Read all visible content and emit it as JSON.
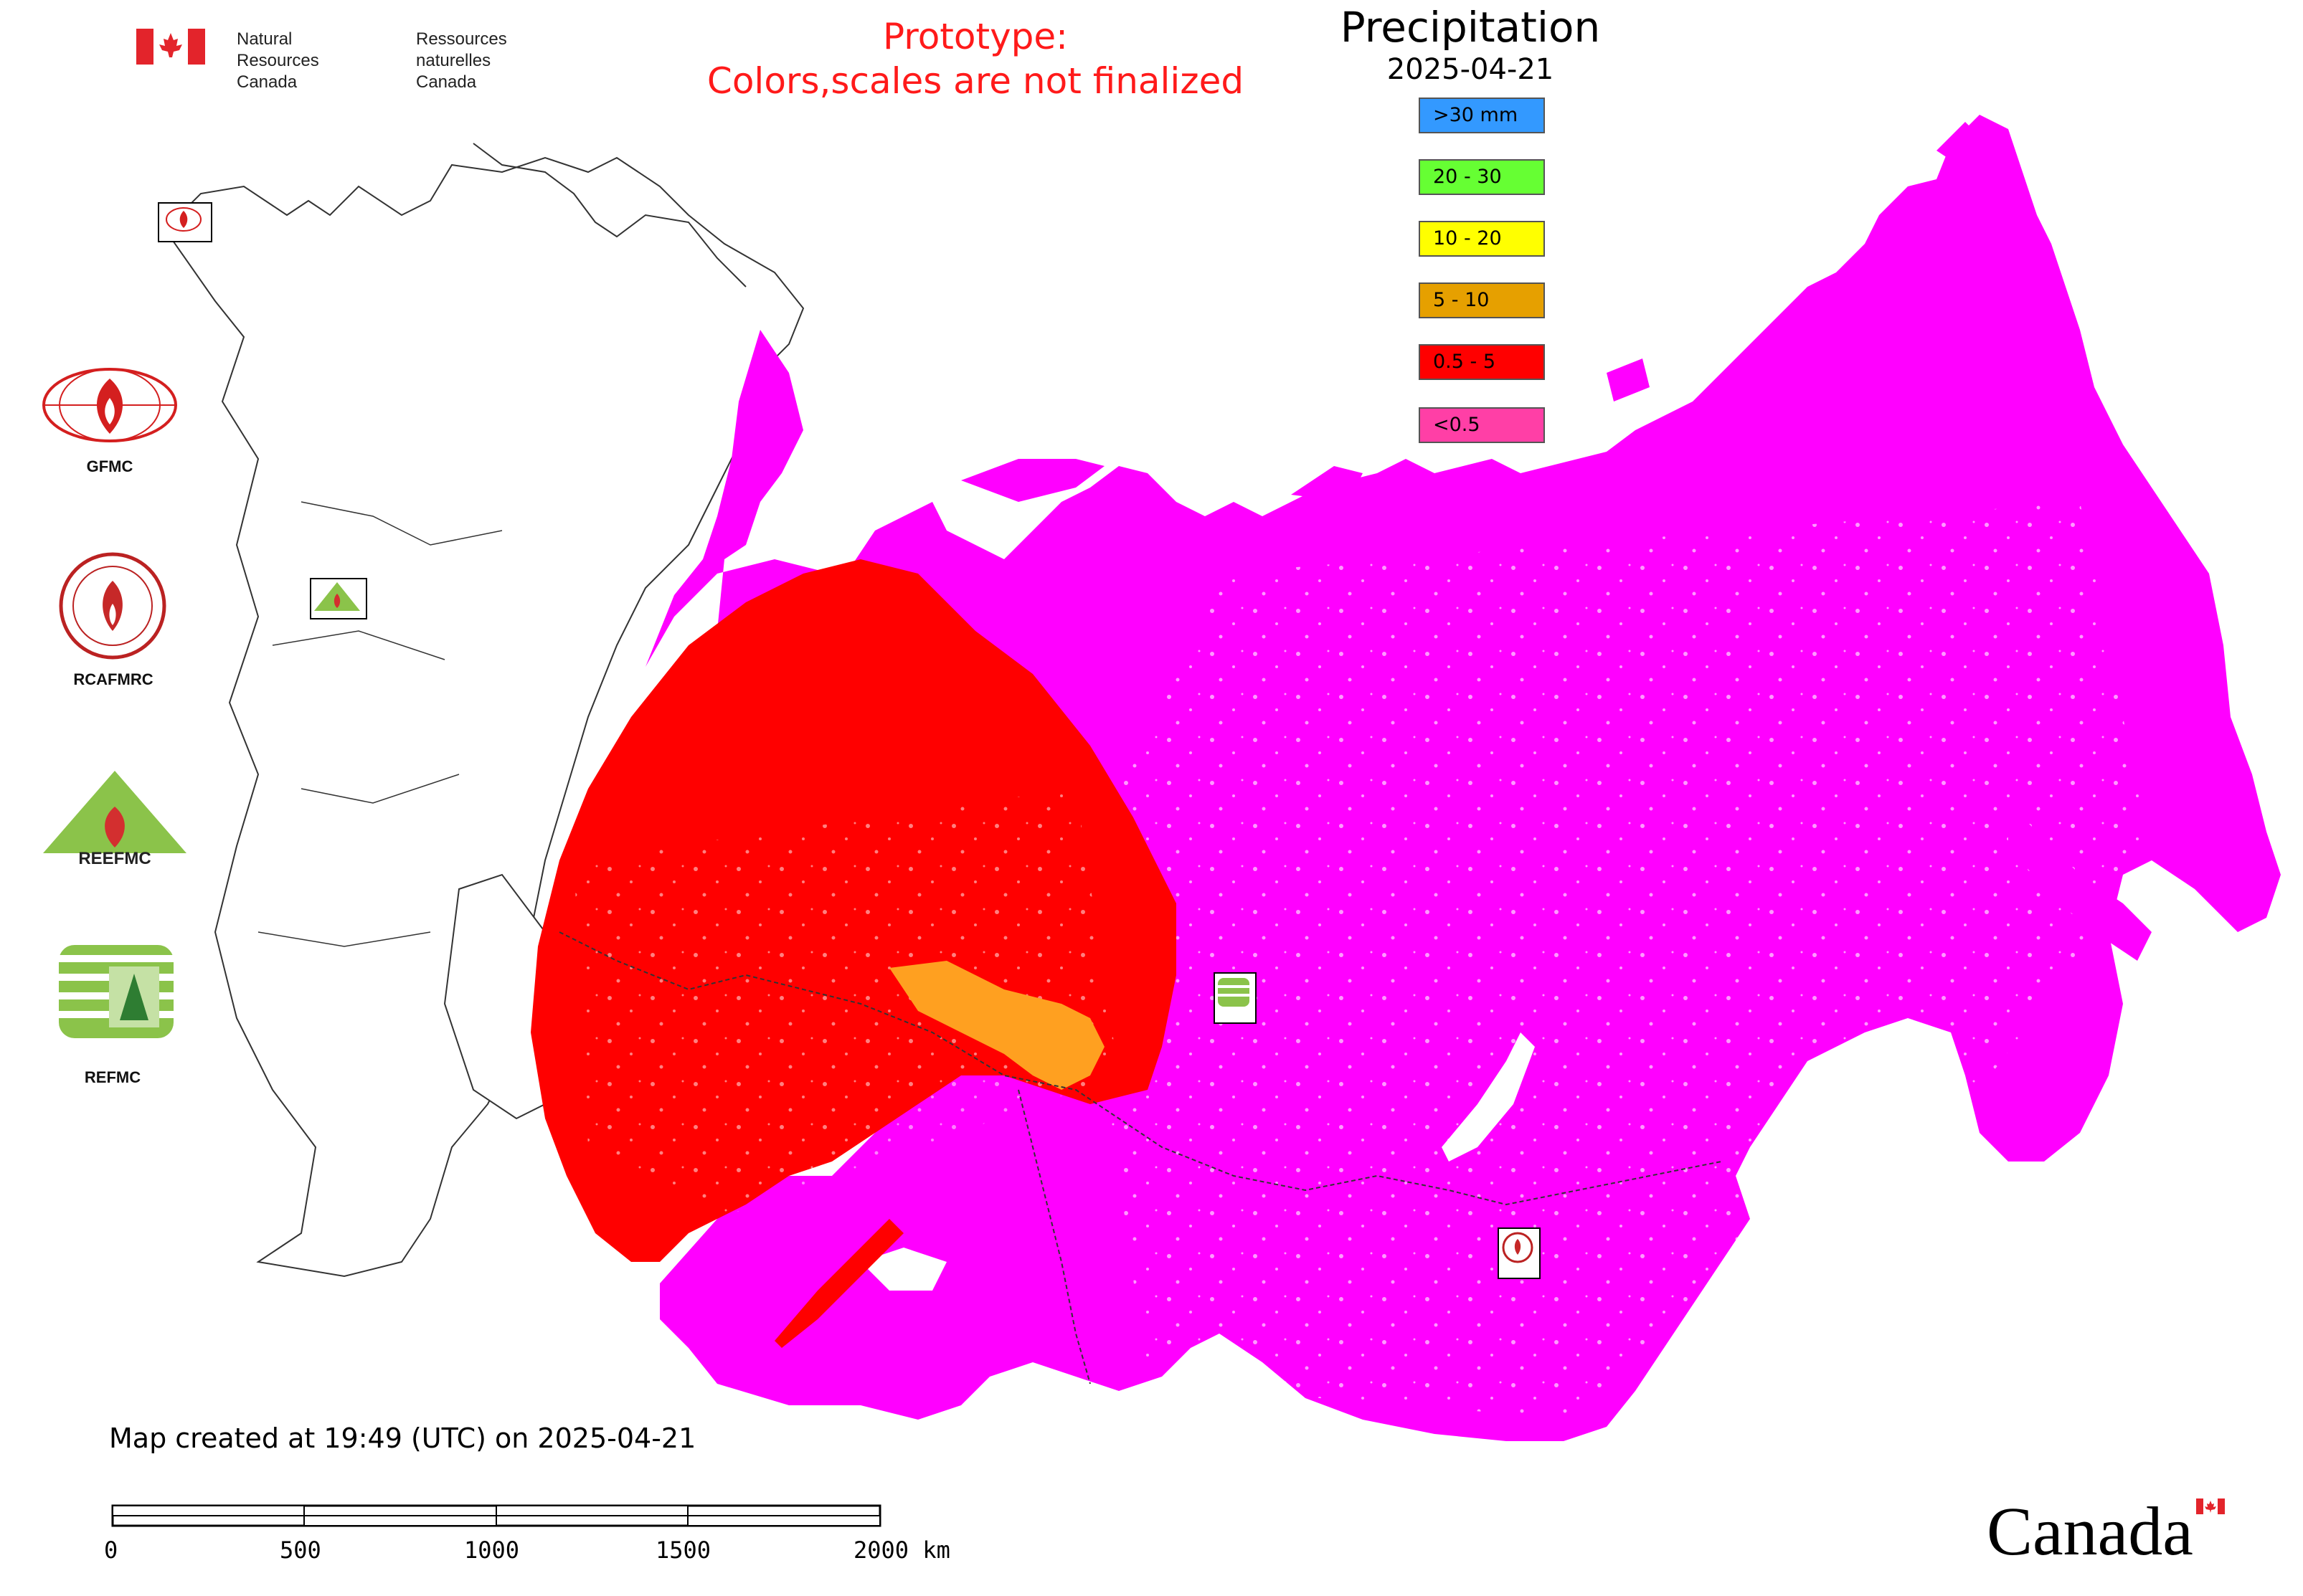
{
  "header": {
    "nrcan_en": "Natural Resources\nCanada",
    "nrcan_fr": "Ressources naturelles\nCanada",
    "prototype_line1": "Prototype:",
    "prototype_line2": "Colors,scales are not finalized",
    "title": "Precipitation",
    "date": "2025-04-21"
  },
  "legend": [
    {
      "label": ">30 mm",
      "color": "#3399ff"
    },
    {
      "label": "20 - 30",
      "color": "#66ff33"
    },
    {
      "label": "10 - 20",
      "color": "#ffff00"
    },
    {
      "label": "5 - 10",
      "color": "#e6a000"
    },
    {
      "label": "0.5 - 5",
      "color": "#ff0000"
    },
    {
      "label": "<0.5",
      "color": "#ff3fa6"
    }
  ],
  "map_colors": {
    "low_precip": "#ff00ff",
    "light_precip": "#ff0000",
    "moderate_precip": "#ffa020",
    "outline": "#333333"
  },
  "organizations": [
    {
      "label": "GFMC",
      "icon": "gfmc-logo-icon"
    },
    {
      "label": "RCAFMRC",
      "icon": "rcafmrc-logo-icon"
    },
    {
      "label": "REEFMC",
      "icon": "reefmc-logo-icon"
    },
    {
      "label": "REFMC",
      "icon": "refmc-logo-icon"
    }
  ],
  "footer": {
    "caption": "Map created at 19:49 (UTC) on 2025-04-21",
    "scale_ticks": [
      "0",
      "500",
      "1000",
      "1500",
      "2000 km"
    ],
    "wordmark": "Canada"
  }
}
